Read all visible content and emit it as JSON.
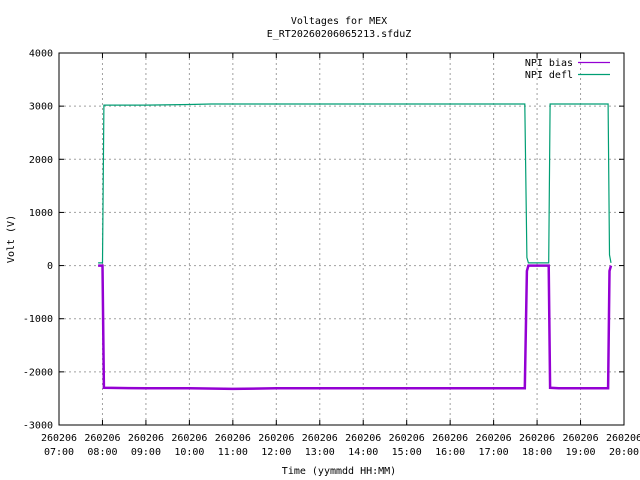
{
  "chart_data": {
    "type": "line",
    "title": "Voltages for MEX",
    "subtitle": "E_RT20260206065213.sfduZ",
    "xlabel": "Time (yymmdd HH:MM)",
    "ylabel": "Volt (V)",
    "ylim": [
      -3000,
      4000
    ],
    "yticks": [
      -3000,
      -2000,
      -1000,
      0,
      1000,
      2000,
      3000,
      4000
    ],
    "xlim": [
      "07:00",
      "20:00"
    ],
    "xticks": [
      {
        "date": "260206",
        "time": "07:00"
      },
      {
        "date": "260206",
        "time": "08:00"
      },
      {
        "date": "260206",
        "time": "09:00"
      },
      {
        "date": "260206",
        "time": "10:00"
      },
      {
        "date": "260206",
        "time": "11:00"
      },
      {
        "date": "260206",
        "time": "12:00"
      },
      {
        "date": "260206",
        "time": "13:00"
      },
      {
        "date": "260206",
        "time": "14:00"
      },
      {
        "date": "260206",
        "time": "15:00"
      },
      {
        "date": "260206",
        "time": "16:00"
      },
      {
        "date": "260206",
        "time": "17:00"
      },
      {
        "date": "260206",
        "time": "18:00"
      },
      {
        "date": "260206",
        "time": "19:00"
      },
      {
        "date": "260206",
        "time": "20:00"
      }
    ],
    "grid": true,
    "legend": "top-right",
    "series": [
      {
        "name": "NPI bias",
        "color": "#9400d3",
        "points": [
          [
            "07:54",
            0
          ],
          [
            "08:00",
            0
          ],
          [
            "08:02",
            -2300
          ],
          [
            "09:00",
            -2310
          ],
          [
            "10:00",
            -2310
          ],
          [
            "11:00",
            -2320
          ],
          [
            "12:00",
            -2310
          ],
          [
            "13:00",
            -2310
          ],
          [
            "14:00",
            -2310
          ],
          [
            "15:00",
            -2310
          ],
          [
            "16:00",
            -2310
          ],
          [
            "17:00",
            -2310
          ],
          [
            "17:43",
            -2310
          ],
          [
            "17:46",
            -100
          ],
          [
            "17:48",
            0
          ],
          [
            "18:16",
            0
          ],
          [
            "18:18",
            -2300
          ],
          [
            "18:30",
            -2310
          ],
          [
            "19:00",
            -2310
          ],
          [
            "19:38",
            -2310
          ],
          [
            "19:40",
            -100
          ],
          [
            "19:42",
            0
          ]
        ]
      },
      {
        "name": "NPI defl",
        "color": "#009e73",
        "points": [
          [
            "07:54",
            50
          ],
          [
            "08:00",
            50
          ],
          [
            "08:02",
            3020
          ],
          [
            "09:00",
            3020
          ],
          [
            "10:00",
            3030
          ],
          [
            "10:30",
            3040
          ],
          [
            "11:00",
            3040
          ],
          [
            "12:00",
            3040
          ],
          [
            "13:00",
            3040
          ],
          [
            "14:00",
            3040
          ],
          [
            "15:00",
            3040
          ],
          [
            "16:00",
            3040
          ],
          [
            "17:00",
            3040
          ],
          [
            "17:43",
            3040
          ],
          [
            "17:46",
            150
          ],
          [
            "17:48",
            50
          ],
          [
            "18:16",
            50
          ],
          [
            "18:18",
            3040
          ],
          [
            "19:00",
            3040
          ],
          [
            "19:38",
            3040
          ],
          [
            "19:40",
            200
          ],
          [
            "19:42",
            50
          ]
        ]
      }
    ]
  }
}
